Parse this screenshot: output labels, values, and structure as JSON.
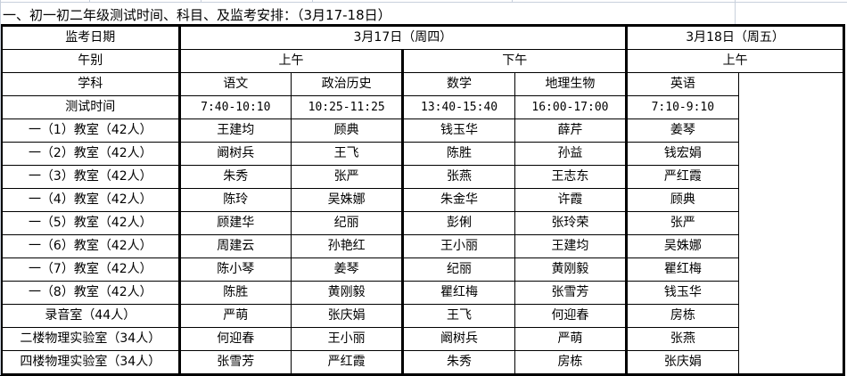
{
  "title": "一、初一初二年级测试时间、科目、及监考安排：（3月17-18日）",
  "header": {
    "date_label": "监考日期",
    "dates": [
      "3月17日（周四）",
      "3月18日（周五）"
    ],
    "period_label": "午别",
    "periods": [
      "上午",
      "下午",
      "上午"
    ],
    "subject_label": "学科",
    "subjects": [
      "语文",
      "政治历史",
      "数学",
      "地理生物",
      "英语"
    ],
    "time_label": "测试时间",
    "times": [
      "7:40-10:10",
      "10:25-11:25",
      "13:40-15:40",
      "16:00-17:00",
      "7:10-9:10"
    ]
  },
  "rows": [
    {
      "room": "一（1）教室（42人）",
      "proctors": [
        "王建均",
        "顾典",
        "钱玉华",
        "薛芹",
        "姜琴"
      ]
    },
    {
      "room": "一（2）教室（42人）",
      "proctors": [
        "阚树兵",
        "王飞",
        "陈胜",
        "孙益",
        "钱宏娟"
      ]
    },
    {
      "room": "一（3）教室（42人）",
      "proctors": [
        "朱秀",
        "张严",
        "张燕",
        "王志东",
        "严红霞"
      ]
    },
    {
      "room": "一（4）教室（42人）",
      "proctors": [
        "陈玲",
        "吴姝娜",
        "朱金华",
        "许霞",
        "顾典"
      ]
    },
    {
      "room": "一（5）教室（42人）",
      "proctors": [
        "顾建华",
        "纪丽",
        "彭俐",
        "张玲荣",
        "张严"
      ]
    },
    {
      "room": "一（6）教室（42人）",
      "proctors": [
        "周建云",
        "孙艳红",
        "王小丽",
        "王建均",
        "吴姝娜"
      ]
    },
    {
      "room": "一（7）教室（42人）",
      "proctors": [
        "陈小琴",
        "姜琴",
        "纪丽",
        "黄刚毅",
        "瞿红梅"
      ]
    },
    {
      "room": "一（8）教室（42人）",
      "proctors": [
        "陈胜",
        "黄刚毅",
        "瞿红梅",
        "张雪芳",
        "钱玉华"
      ]
    },
    {
      "room": "录音室（44人）",
      "proctors": [
        "严萌",
        "张庆娟",
        "王飞",
        "何迎春",
        "房栋"
      ]
    },
    {
      "room": "二楼物理实验室（34人）",
      "proctors": [
        "何迎春",
        "王小丽",
        "阚树兵",
        "严萌",
        "张燕"
      ]
    },
    {
      "room": "四楼物理实验室（34人）",
      "proctors": [
        "张雪芳",
        "严红霞",
        "朱秀",
        "房栋",
        "张庆娟"
      ]
    }
  ]
}
